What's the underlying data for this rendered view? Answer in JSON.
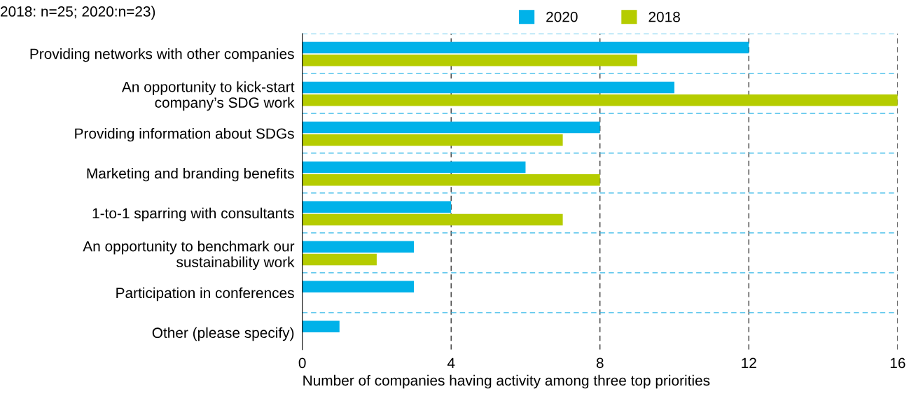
{
  "chart_data": {
    "type": "bar",
    "orientation": "horizontal",
    "categories": [
      "Providing networks with other companies",
      "An opportunity to kick-start\ncompany’s SDG work",
      "Providing information about SDGs",
      "Marketing and branding benefits",
      "1-to-1 sparring with consultants",
      "An opportunity to benchmark our\nsustainability work",
      "Participation in conferences",
      "Other (please specify)"
    ],
    "series": [
      {
        "name": "2020",
        "color": "#00b2e9",
        "values": [
          12,
          10,
          8,
          6,
          4,
          3,
          3,
          1
        ]
      },
      {
        "name": "2018",
        "color": "#b5cc00",
        "values": [
          9,
          16,
          7,
          8,
          7,
          2,
          null,
          null
        ]
      }
    ],
    "xlim": [
      0,
      16
    ],
    "xticks": [
      0,
      4,
      8,
      12,
      16
    ],
    "xlabel": "Number of companies having activity among three top priorities",
    "annotations": [
      "2018: n=25; 2020:n=23)"
    ],
    "grid": true,
    "legend": "top"
  }
}
